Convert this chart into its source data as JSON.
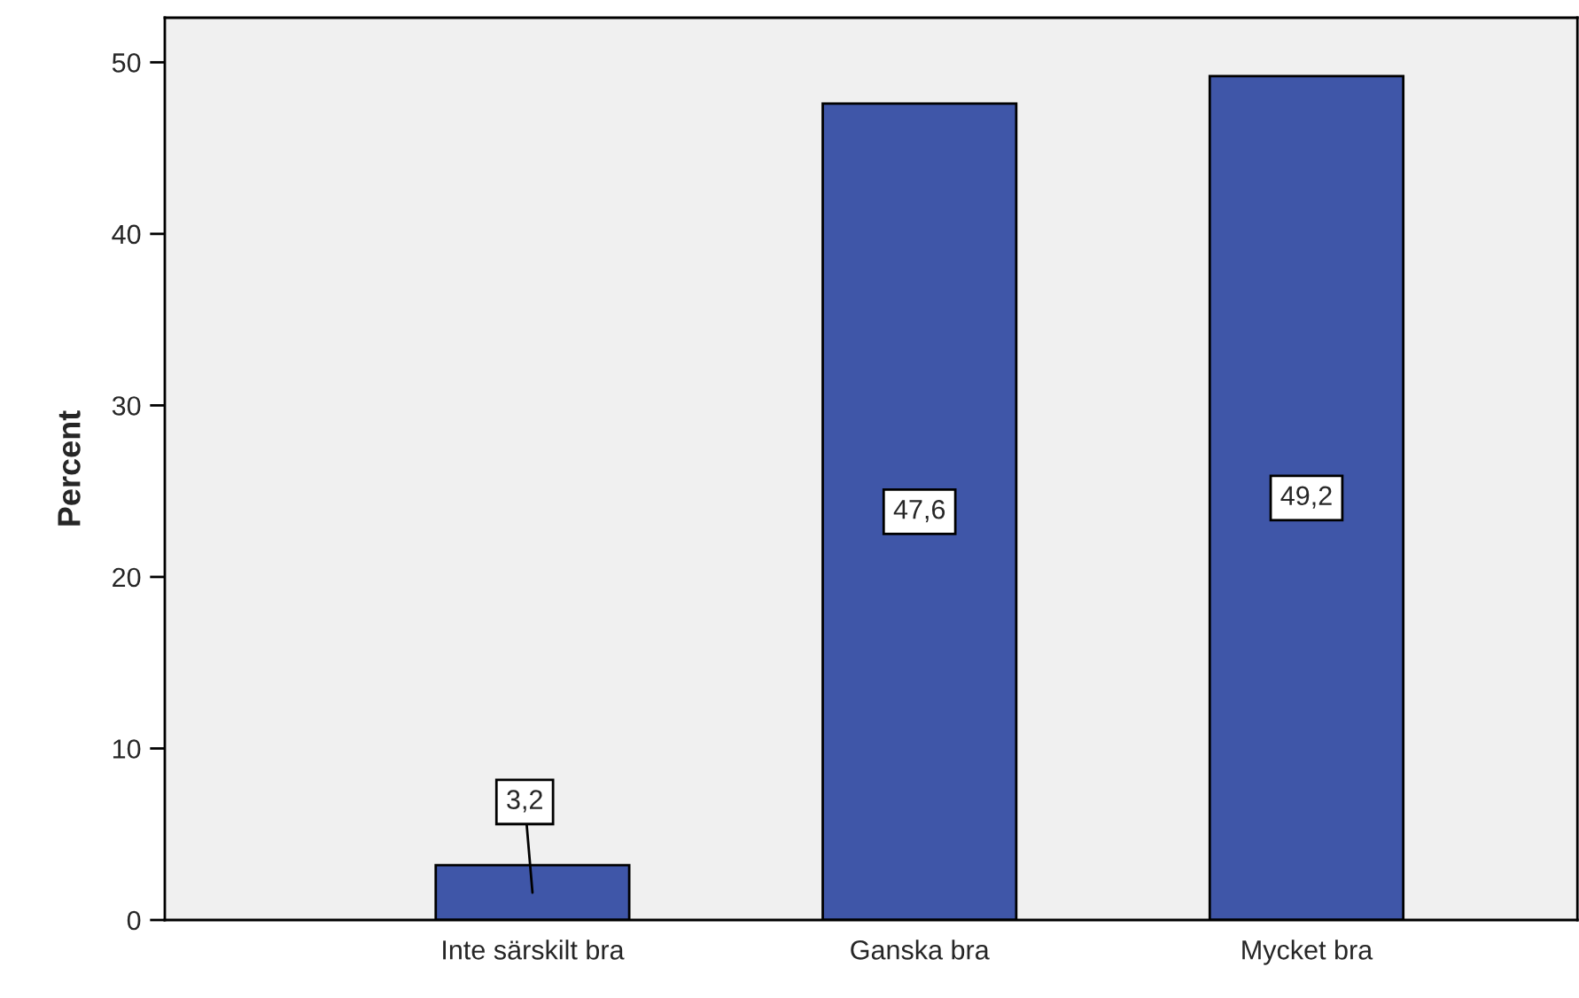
{
  "chart_data": {
    "type": "bar",
    "ylabel": "Percent",
    "categories": [
      "Inte särskilt bra",
      "Ganska bra",
      "Mycket bra"
    ],
    "values": [
      3.2,
      47.6,
      49.2
    ],
    "value_labels": [
      "3,2",
      "47,6",
      "49,2"
    ],
    "color": "#3f56a8",
    "ylim": [
      0,
      52.6
    ],
    "yticks": [
      0,
      10,
      20,
      30,
      40,
      50
    ],
    "grid": false
  }
}
